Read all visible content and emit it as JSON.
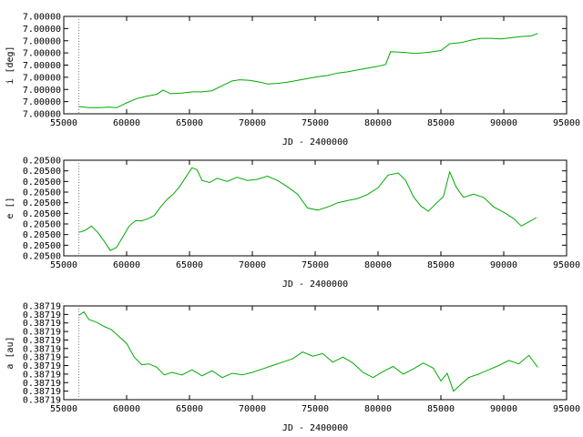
{
  "chart_data": [
    {
      "type": "line",
      "title": "",
      "xlabel": "JD - 2400000",
      "ylabel": "i [deg]",
      "xlim": [
        55000,
        95000
      ],
      "ylim": [
        0,
        8
      ],
      "x_ticks": [
        55000,
        60000,
        65000,
        70000,
        75000,
        80000,
        85000,
        90000,
        95000
      ],
      "x_tick_labels": [
        "55000",
        "60000",
        "65000",
        "70000",
        "75000",
        "80000",
        "85000",
        "90000",
        "95000"
      ],
      "y_tick_labels": [
        "7.00000",
        "7.00000",
        "7.00000",
        "7.00000",
        "7.00000",
        "7.00000",
        "7.00000",
        "7.00000",
        "7.00000"
      ],
      "grid": false,
      "marker_line_x": 56200,
      "marker_line_color": "#808080",
      "series_color": "#00aa00",
      "series": [
        {
          "name": "",
          "x": [
            56200,
            57000,
            57800,
            58600,
            59200,
            60000,
            60800,
            61600,
            62400,
            62900,
            63500,
            64400,
            65200,
            66000,
            66800,
            67600,
            68400,
            69000,
            69800,
            70600,
            71200,
            72000,
            72800,
            73600,
            74400,
            75200,
            76000,
            76800,
            77600,
            78400,
            79200,
            80000,
            80600,
            81000,
            82000,
            83000,
            84000,
            85000,
            85700,
            86600,
            87400,
            88200,
            89000,
            89800,
            90600,
            91400,
            92200,
            92700
          ],
          "y": [
            0.6,
            0.5,
            0.5,
            0.55,
            0.5,
            0.9,
            1.25,
            1.45,
            1.6,
            1.95,
            1.65,
            1.7,
            1.8,
            1.8,
            1.9,
            2.3,
            2.7,
            2.8,
            2.75,
            2.6,
            2.45,
            2.5,
            2.6,
            2.75,
            2.9,
            3.05,
            3.15,
            3.35,
            3.45,
            3.6,
            3.75,
            3.9,
            4.05,
            5.1,
            5.05,
            4.95,
            5.05,
            5.2,
            5.75,
            5.85,
            6.05,
            6.2,
            6.2,
            6.15,
            6.25,
            6.35,
            6.4,
            6.6
          ]
        }
      ]
    },
    {
      "type": "line",
      "title": "",
      "xlabel": "JD - 2400000",
      "ylabel": "e []",
      "xlim": [
        55000,
        95000
      ],
      "ylim": [
        0,
        9
      ],
      "x_ticks": [
        55000,
        60000,
        65000,
        70000,
        75000,
        80000,
        85000,
        90000,
        95000
      ],
      "x_tick_labels": [
        "55000",
        "60000",
        "65000",
        "70000",
        "75000",
        "80000",
        "85000",
        "90000",
        "95000"
      ],
      "y_tick_labels": [
        "0.20500",
        "0.20500",
        "0.20500",
        "0.20500",
        "0.20500",
        "0.20500",
        "0.20500",
        "0.20500",
        "0.20500",
        "0.20500"
      ],
      "grid": false,
      "marker_line_x": 56200,
      "marker_line_color": "#808080",
      "series_color": "#00aa00",
      "series": [
        {
          "name": "",
          "x": [
            56200,
            56700,
            57200,
            57700,
            58200,
            58700,
            59200,
            59700,
            60200,
            60700,
            61200,
            61700,
            62200,
            62700,
            63200,
            63700,
            64200,
            64700,
            65200,
            65600,
            66000,
            66600,
            67200,
            68000,
            68800,
            69600,
            70400,
            71200,
            72000,
            72800,
            73600,
            74400,
            75200,
            76000,
            76800,
            77600,
            78400,
            79200,
            80000,
            80800,
            81600,
            82200,
            82800,
            83400,
            84000,
            84600,
            85200,
            85700,
            86200,
            86800,
            87600,
            88400,
            89200,
            90000,
            90800,
            91400,
            92000,
            92600
          ],
          "y": [
            2.2,
            2.4,
            2.8,
            2.2,
            1.4,
            0.5,
            0.8,
            1.8,
            2.8,
            3.3,
            3.3,
            3.5,
            3.8,
            4.6,
            5.3,
            5.8,
            6.5,
            7.4,
            8.3,
            8.1,
            7.1,
            6.9,
            7.3,
            7.0,
            7.4,
            7.1,
            7.2,
            7.5,
            7.1,
            6.5,
            5.8,
            4.5,
            4.3,
            4.6,
            5.0,
            5.2,
            5.4,
            5.8,
            6.4,
            7.6,
            7.8,
            7.1,
            5.6,
            4.7,
            4.2,
            4.9,
            5.6,
            7.9,
            6.5,
            5.5,
            5.8,
            5.5,
            4.6,
            4.1,
            3.5,
            2.8,
            3.2,
            3.6
          ]
        }
      ]
    },
    {
      "type": "line",
      "title": "",
      "xlabel": "JD - 2400000",
      "ylabel": "a [au]",
      "xlim": [
        55000,
        95000
      ],
      "ylim": [
        0,
        11
      ],
      "x_ticks": [
        55000,
        60000,
        65000,
        70000,
        75000,
        80000,
        85000,
        90000,
        95000
      ],
      "x_tick_labels": [
        "55000",
        "60000",
        "65000",
        "70000",
        "75000",
        "80000",
        "85000",
        "90000",
        "95000"
      ],
      "y_tick_labels": [
        "0.38719",
        "0.38719",
        "0.38719",
        "0.38719",
        "0.38719",
        "0.38719",
        "0.38719",
        "0.38719",
        "0.38719",
        "0.38719",
        "0.38719",
        "0.38719"
      ],
      "grid": false,
      "marker_line_x": 56200,
      "marker_line_color": "#808080",
      "series_color": "#00aa00",
      "series": [
        {
          "name": "",
          "x": [
            56200,
            56600,
            57000,
            57600,
            58200,
            58800,
            59400,
            60000,
            60600,
            61200,
            61800,
            62400,
            63000,
            63600,
            64400,
            65200,
            66000,
            66800,
            67600,
            68400,
            69200,
            70000,
            70800,
            71600,
            72400,
            73200,
            74000,
            74800,
            75600,
            76400,
            77200,
            78000,
            78800,
            79600,
            80400,
            81200,
            82000,
            82800,
            83600,
            84400,
            85000,
            85500,
            86000,
            86600,
            87200,
            88000,
            88800,
            89600,
            90400,
            91200,
            92000,
            92700
          ],
          "y": [
            9.9,
            10.3,
            9.4,
            9.1,
            8.6,
            8.2,
            7.4,
            6.6,
            5.0,
            4.1,
            4.2,
            3.8,
            2.9,
            3.2,
            2.9,
            3.5,
            2.8,
            3.4,
            2.6,
            3.1,
            2.9,
            3.2,
            3.6,
            4.0,
            4.4,
            4.8,
            5.6,
            5.1,
            5.4,
            4.4,
            5.0,
            4.3,
            3.2,
            2.6,
            3.3,
            3.9,
            3.0,
            3.6,
            4.3,
            3.7,
            2.2,
            3.1,
            1.0,
            1.8,
            2.6,
            3.0,
            3.5,
            4.0,
            4.6,
            4.2,
            5.2,
            3.8
          ]
        }
      ]
    }
  ]
}
